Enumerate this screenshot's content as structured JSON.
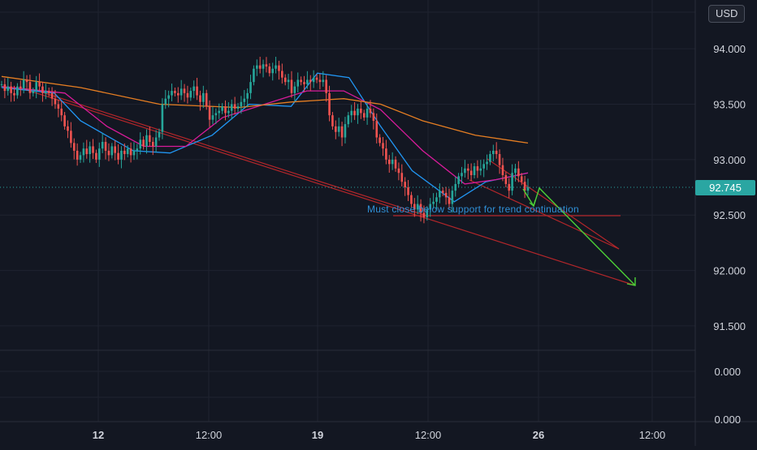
{
  "chart_data": {
    "type": "candlestick",
    "title": "",
    "currency": "USD",
    "last_price": "92.745",
    "y_tick_labels": [
      "94.000",
      "93.500",
      "93.000",
      "92.500",
      "92.000",
      "91.500"
    ],
    "y_ticks": [
      94.0,
      93.5,
      93.0,
      92.5,
      92.0,
      91.5
    ],
    "indicator_tick_labels": [
      "0.000",
      "0.000"
    ],
    "x_tick_labels": [
      "12",
      "12:00",
      "19",
      "12:00",
      "26",
      "12:00"
    ],
    "ylim": [
      91.28,
      94.44
    ],
    "grid": true,
    "annotation": "Must close below support for trend continuation",
    "closes": [
      93.68,
      93.62,
      93.66,
      93.6,
      93.58,
      93.66,
      93.64,
      93.72,
      93.7,
      93.6,
      93.62,
      93.7,
      93.66,
      93.6,
      93.62,
      93.6,
      93.55,
      93.5,
      93.46,
      93.4,
      93.3,
      93.26,
      93.15,
      93.08,
      93.0,
      93.04,
      93.1,
      93.05,
      93.12,
      93.06,
      93.0,
      93.1,
      93.16,
      93.08,
      93.04,
      93.12,
      93.06,
      93.0,
      93.08,
      93.05,
      93.1,
      93.04,
      93.08,
      93.1,
      93.18,
      93.12,
      93.22,
      93.16,
      93.12,
      93.2,
      93.25,
      93.5,
      93.55,
      93.58,
      93.62,
      93.6,
      93.58,
      93.64,
      93.6,
      93.56,
      93.62,
      93.66,
      93.58,
      93.52,
      93.6,
      93.48,
      93.36,
      93.4,
      93.42,
      93.44,
      93.48,
      93.42,
      93.44,
      93.5,
      93.46,
      93.48,
      93.52,
      93.55,
      93.6,
      93.7,
      93.82,
      93.85,
      93.82,
      93.86,
      93.84,
      93.78,
      93.82,
      93.85,
      93.8,
      93.74,
      93.7,
      93.72,
      93.6,
      93.66,
      93.72,
      93.7,
      93.68,
      93.72,
      93.7,
      93.74,
      93.72,
      93.7,
      93.72,
      93.6,
      93.4,
      93.3,
      93.25,
      93.3,
      93.2,
      93.32,
      93.4,
      93.44,
      93.4,
      93.46,
      93.42,
      93.38,
      93.46,
      93.42,
      93.35,
      93.2,
      93.15,
      93.1,
      93.0,
      92.96,
      93.0,
      92.92,
      92.88,
      92.8,
      92.75,
      92.68,
      92.6,
      92.55,
      92.6,
      92.52,
      92.48,
      92.55,
      92.6,
      92.62,
      92.66,
      92.72,
      92.7,
      92.66,
      92.6,
      92.72,
      92.78,
      92.85,
      92.88,
      92.92,
      92.9,
      92.86,
      92.94,
      92.9,
      92.92,
      92.96,
      92.98,
      93.05,
      93.08,
      93.05,
      92.95,
      92.86,
      92.78,
      92.72,
      92.88,
      92.92,
      92.85,
      92.8,
      92.72,
      92.75
    ],
    "series": [
      {
        "name": "",
        "color": "#2196f3",
        "x": [
          0.0,
          0.1,
          0.15,
          0.25,
          0.32,
          0.4,
          0.47,
          0.55,
          0.6,
          0.66,
          0.72,
          0.78,
          0.86,
          0.92,
          1.0
        ],
        "values": [
          93.65,
          93.6,
          93.35,
          93.08,
          93.06,
          93.22,
          93.5,
          93.48,
          93.78,
          93.74,
          93.3,
          92.9,
          92.62,
          92.8,
          92.88
        ]
      },
      {
        "name": "",
        "color": "#d81b9a",
        "x": [
          0.0,
          0.12,
          0.2,
          0.27,
          0.35,
          0.42,
          0.5,
          0.58,
          0.65,
          0.72,
          0.8,
          0.88,
          0.94,
          1.0
        ],
        "values": [
          93.66,
          93.6,
          93.3,
          93.12,
          93.12,
          93.38,
          93.5,
          93.62,
          93.62,
          93.45,
          93.08,
          92.78,
          92.82,
          92.88
        ]
      },
      {
        "name": "",
        "color": "#e67e22",
        "x": [
          0.0,
          0.15,
          0.3,
          0.45,
          0.55,
          0.65,
          0.72,
          0.8,
          0.9,
          1.0
        ],
        "values": [
          93.75,
          93.65,
          93.5,
          93.47,
          93.52,
          93.55,
          93.5,
          93.35,
          93.22,
          93.15
        ]
      }
    ]
  }
}
